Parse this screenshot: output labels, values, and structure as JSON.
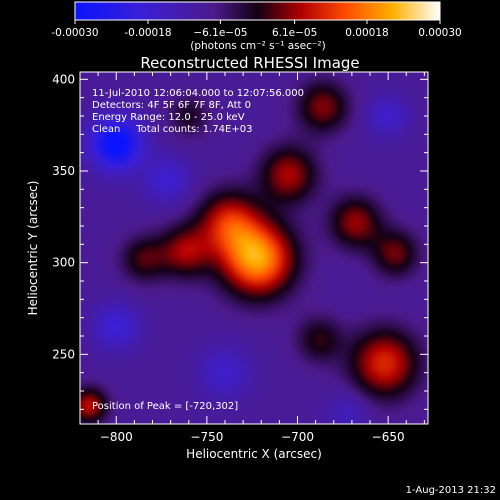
{
  "colorbar": {
    "min": -0.0003,
    "max": 0.0003,
    "tick_labels": [
      "-0.00030",
      "-0.00018",
      "−6.1e−05",
      "6.1e−05",
      "0.00018",
      "0.00030"
    ],
    "unit_label": "(photons cm⁻² s⁻¹ asec⁻²)",
    "colormap": "rainbow-like (blue → purple → red → orange → yellow → white)"
  },
  "footer": {
    "timestamp": "1-Aug-2013 21:32"
  },
  "chart_data": {
    "type": "heatmap",
    "title": "Reconstructed RHESSI Image",
    "xlabel": "Heliocentric X (arcsec)",
    "ylabel": "Heliocentric Y (arcsec)",
    "xlim": [
      -820,
      -628
    ],
    "ylim": [
      212,
      404
    ],
    "x_ticks": [
      -800,
      -750,
      -700,
      -650
    ],
    "y_ticks": [
      250,
      300,
      350,
      400
    ],
    "x_tick_labels": [
      "−800",
      "−750",
      "−700",
      "−650"
    ],
    "y_tick_labels": [
      "250",
      "300",
      "350",
      "400"
    ],
    "annotations": [
      "11-Jul-2010 12:06:04.000 to 12:07:56.000",
      "Detectors: 4F 5F 6F 7F 8F, Att 0",
      "Energy Range: 12.0 - 25.0 keV",
      "Clean     Total counts: 1.74E+03"
    ],
    "peak_label": "Position of Peak = [-720,302]",
    "peak": {
      "x": -720,
      "y": 302
    },
    "value_range": [
      -0.0003,
      0.0003
    ],
    "sources": [
      {
        "x": -722,
        "y": 302,
        "sigma": 14,
        "amp": 0.0003
      },
      {
        "x": -738,
        "y": 322,
        "sigma": 12,
        "amp": 0.00018
      },
      {
        "x": -762,
        "y": 306,
        "sigma": 10,
        "amp": 0.00015
      },
      {
        "x": -705,
        "y": 348,
        "sigma": 11,
        "amp": 0.00016
      },
      {
        "x": -686,
        "y": 385,
        "sigma": 10,
        "amp": 0.00014
      },
      {
        "x": -668,
        "y": 322,
        "sigma": 10,
        "amp": 0.00015
      },
      {
        "x": -652,
        "y": 245,
        "sigma": 13,
        "amp": 0.0002
      },
      {
        "x": -646,
        "y": 305,
        "sigma": 9,
        "amp": 0.00013
      },
      {
        "x": -688,
        "y": 258,
        "sigma": 9,
        "amp": 0.0001
      },
      {
        "x": -785,
        "y": 302,
        "sigma": 9,
        "amp": 0.00011
      },
      {
        "x": -815,
        "y": 222,
        "sigma": 7,
        "amp": 0.00017
      },
      {
        "x": -760,
        "y": 380,
        "sigma": 8,
        "amp": 8e-05
      },
      {
        "x": -800,
        "y": 365,
        "sigma": 10,
        "amp": -0.00023
      },
      {
        "x": -800,
        "y": 265,
        "sigma": 9,
        "amp": -0.0001
      },
      {
        "x": -772,
        "y": 345,
        "sigma": 9,
        "amp": -9e-05
      },
      {
        "x": -740,
        "y": 240,
        "sigma": 10,
        "amp": -8e-05
      },
      {
        "x": -650,
        "y": 380,
        "sigma": 8,
        "amp": -8e-05
      },
      {
        "x": -672,
        "y": 218,
        "sigma": 8,
        "amp": -6e-05
      }
    ],
    "background": -9e-05
  }
}
